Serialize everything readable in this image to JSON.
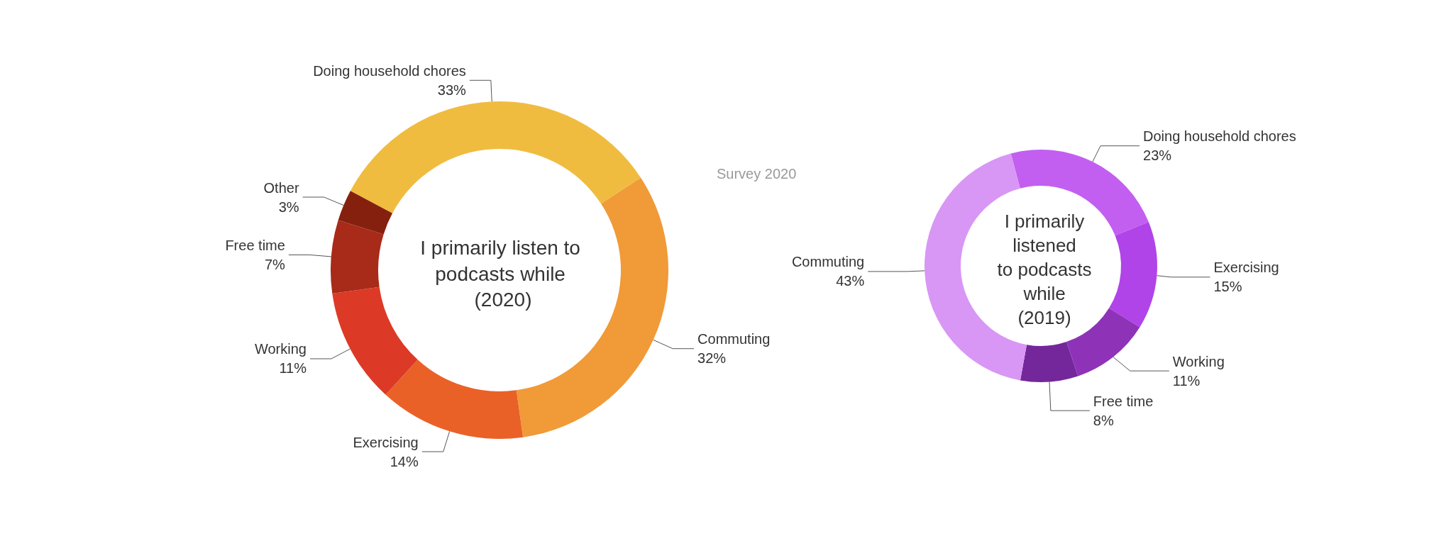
{
  "chart_data": [
    {
      "type": "donut",
      "title": "I primarily listen to podcasts while (2020)",
      "categories": [
        "Doing household chores",
        "Commuting",
        "Exercising",
        "Working",
        "Free time",
        "Other"
      ],
      "values": [
        33,
        32,
        14,
        11,
        7,
        3
      ],
      "value_labels": [
        "33%",
        "32%",
        "14%",
        "11%",
        "7%",
        "3%"
      ],
      "colors": [
        "#f0bc40",
        "#f09a38",
        "#ea6128",
        "#dc3a26",
        "#a82a18",
        "#85200f"
      ],
      "legend": false,
      "annotations": [
        "Survey 2020"
      ]
    },
    {
      "type": "donut",
      "title": "I primarily listened to podcasts while (2019)",
      "categories": [
        "Doing household chores",
        "Exercising",
        "Working",
        "Free time",
        "Commuting"
      ],
      "values": [
        23,
        15,
        11,
        8,
        43
      ],
      "value_labels": [
        "23%",
        "15%",
        "11%",
        "8%",
        "43%"
      ],
      "colors": [
        "#c35ff0",
        "#b044e8",
        "#8e33b8",
        "#74279a",
        "#d896f5"
      ],
      "legend": false
    }
  ]
}
